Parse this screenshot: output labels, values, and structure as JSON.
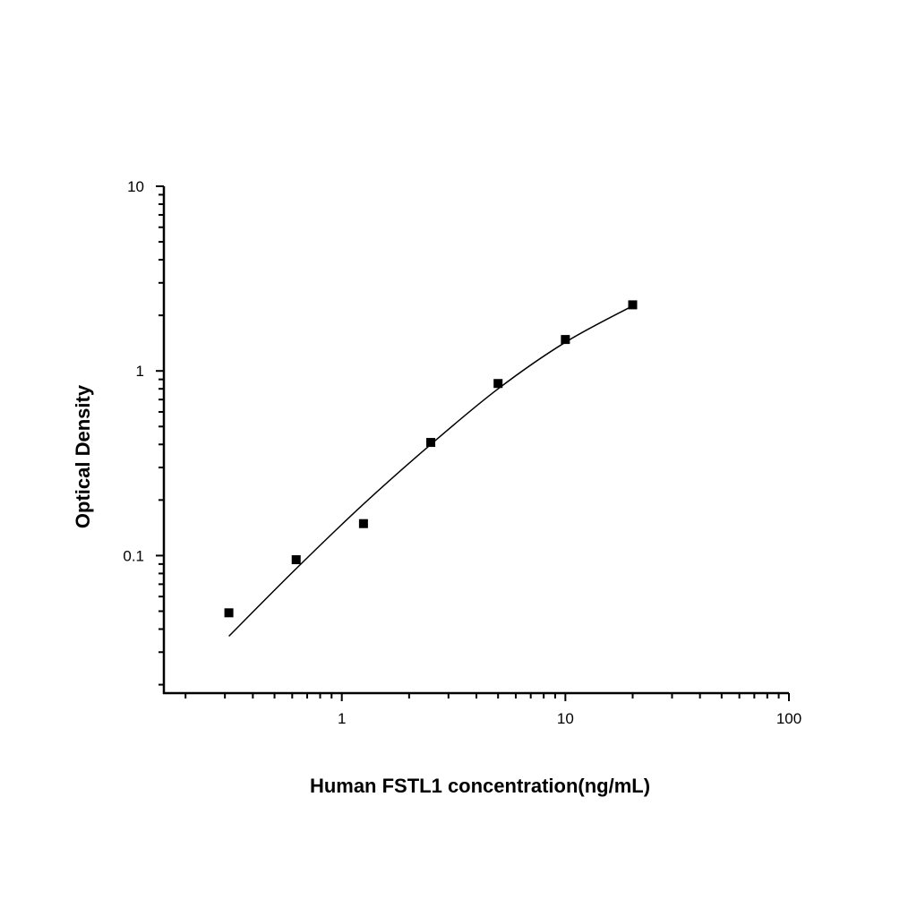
{
  "chart_data": {
    "type": "scatter",
    "title": "",
    "xlabel": "Human FSTL1 concentration(ng/mL)",
    "ylabel": "Optical Density",
    "x_scale": "log",
    "y_scale": "log",
    "xlim": [
      0.16,
      100
    ],
    "ylim": [
      0.018,
      10
    ],
    "x_ticks": [
      {
        "value": 1,
        "label": "1"
      },
      {
        "value": 10,
        "label": "10"
      },
      {
        "value": 100,
        "label": "100"
      }
    ],
    "y_ticks": [
      {
        "value": 0.1,
        "label": "0.1"
      },
      {
        "value": 1,
        "label": "1"
      },
      {
        "value": 10,
        "label": "10"
      }
    ],
    "grid": false,
    "series": [
      {
        "type": "scatter",
        "marker": "square",
        "color": "#000000",
        "x": [
          0.3125,
          0.625,
          1.25,
          2.5,
          5,
          10,
          20
        ],
        "y": [
          0.049,
          0.095,
          0.149,
          0.41,
          0.855,
          1.48,
          2.28
        ]
      },
      {
        "type": "line",
        "color": "#000000",
        "x": [
          0.3125,
          0.625,
          1.25,
          2.5,
          5,
          10,
          20
        ],
        "y": [
          0.0366,
          0.085,
          0.19,
          0.4,
          0.8,
          1.43,
          2.25
        ]
      }
    ]
  }
}
